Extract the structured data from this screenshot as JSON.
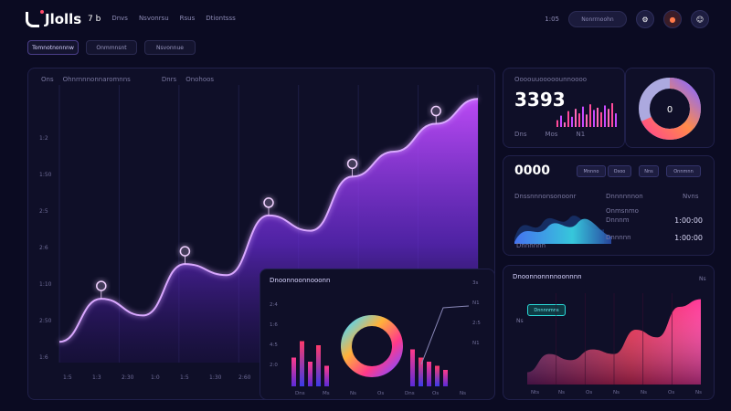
{
  "header": {
    "logo_text": "Jlolls",
    "nav": [
      "7 b",
      "Dnvs",
      "Nsvonrsu",
      "Rsus",
      "Dtiontsss"
    ],
    "right_text": "1:05",
    "pill_text": "Nonrrnoohn",
    "icons": [
      "settings-icon",
      "notification-icon",
      "user-icon"
    ]
  },
  "tabs": [
    "Tomnotnonnnw",
    "Onmmnsnt",
    "Nsvonnue"
  ],
  "main_chart": {
    "header_left": "Ons",
    "header_mid": "Ohnrnnnonnaromnns",
    "header_b": "Dnrs",
    "header_c": "Onohoos",
    "chart_data": {
      "type": "area",
      "x": [
        0,
        1,
        2,
        3,
        4,
        5,
        6,
        7,
        8,
        9,
        10
      ],
      "values": [
        0.75,
        2.3,
        1.7,
        3.55,
        3.15,
        5.3,
        4.75,
        6.7,
        7.6,
        8.6,
        9.5
      ],
      "markers": [
        1,
        3,
        5,
        7,
        9
      ],
      "ytick_labels": [
        "1:2",
        "1:50",
        "2:5",
        "2:6",
        "1:10",
        "2:50",
        "1:6"
      ],
      "xtick_labels": [
        "1:5",
        "1:3",
        "2:30",
        "1:0",
        "1:5",
        "1:30",
        "2:60"
      ],
      "gradient": [
        "#c44dff",
        "#6a2bd8",
        "#2a1466"
      ],
      "line_color": "#d9a8ff"
    }
  },
  "card_top_right": {
    "big": "3393",
    "label": "Oooouuooooounnoooo",
    "sub": [
      "Dns",
      "Mos",
      "N1"
    ],
    "bars": [
      6,
      10,
      4,
      14,
      9,
      16,
      12,
      18,
      11,
      20,
      15,
      17,
      13,
      19,
      16,
      21,
      12
    ],
    "donut": {
      "label": "0",
      "colors": [
        "#ff4a8a",
        "#ff8a4a",
        "#8a6aff",
        "#c8c4ff"
      ]
    }
  },
  "card_mid_right": {
    "big": "0000",
    "pill_a": "Mnnno",
    "pill_b": "Osoo",
    "pill_c": "Nns",
    "pill_d": "Onnmnn",
    "label_left": "Dnssnnnonsonoonr",
    "label_mid": "Dnnnnnnon",
    "label_right": "Nvns",
    "chart_label": "Onmsnmo",
    "list": [
      {
        "name": "Dnnnm",
        "value": "1:00:00"
      },
      {
        "name": "Dnnnnn",
        "value": "1:00:00"
      }
    ],
    "footer": "Dnnnnnn"
  },
  "card_bottom_mid": {
    "title": "Dnoonnoonnooonn",
    "right_labels": [
      "3s",
      "N1",
      "2:5",
      "N1"
    ],
    "left_ticks": [
      "2:4",
      "1:6",
      "4:5",
      "2:0"
    ],
    "x_labels": [
      "Dns",
      "Ms",
      "Ns",
      "Os",
      "Dns",
      "Os",
      "Ns"
    ],
    "bars_left": [
      0.35,
      0.55,
      0.3,
      0.5,
      0.25
    ],
    "bars_right": [
      0.45,
      0.35,
      0.3,
      0.25,
      0.2
    ],
    "donut_colors": [
      "#ff3a8a",
      "#ffb23a",
      "#4ad8ff",
      "#8a4aff"
    ]
  },
  "card_bottom_right": {
    "title": "Dnoonnonnnnoonnnn",
    "badge": "Dnnnnmns",
    "y_label": "Ns",
    "right_label": "Ns",
    "chart_data": {
      "type": "area",
      "x": [
        0,
        1,
        2,
        3,
        4,
        5,
        6,
        7,
        8
      ],
      "values": [
        0.8,
        2.0,
        1.6,
        2.3,
        2.0,
        3.6,
        3.1,
        5.1,
        5.6
      ],
      "xtick_labels": [
        "Nts",
        "Ns",
        "Os",
        "Ns",
        "Ns",
        "Os",
        "Ns"
      ],
      "gradient": [
        "#ff3a9a",
        "#e8284a",
        "#6a1a3a"
      ]
    }
  }
}
